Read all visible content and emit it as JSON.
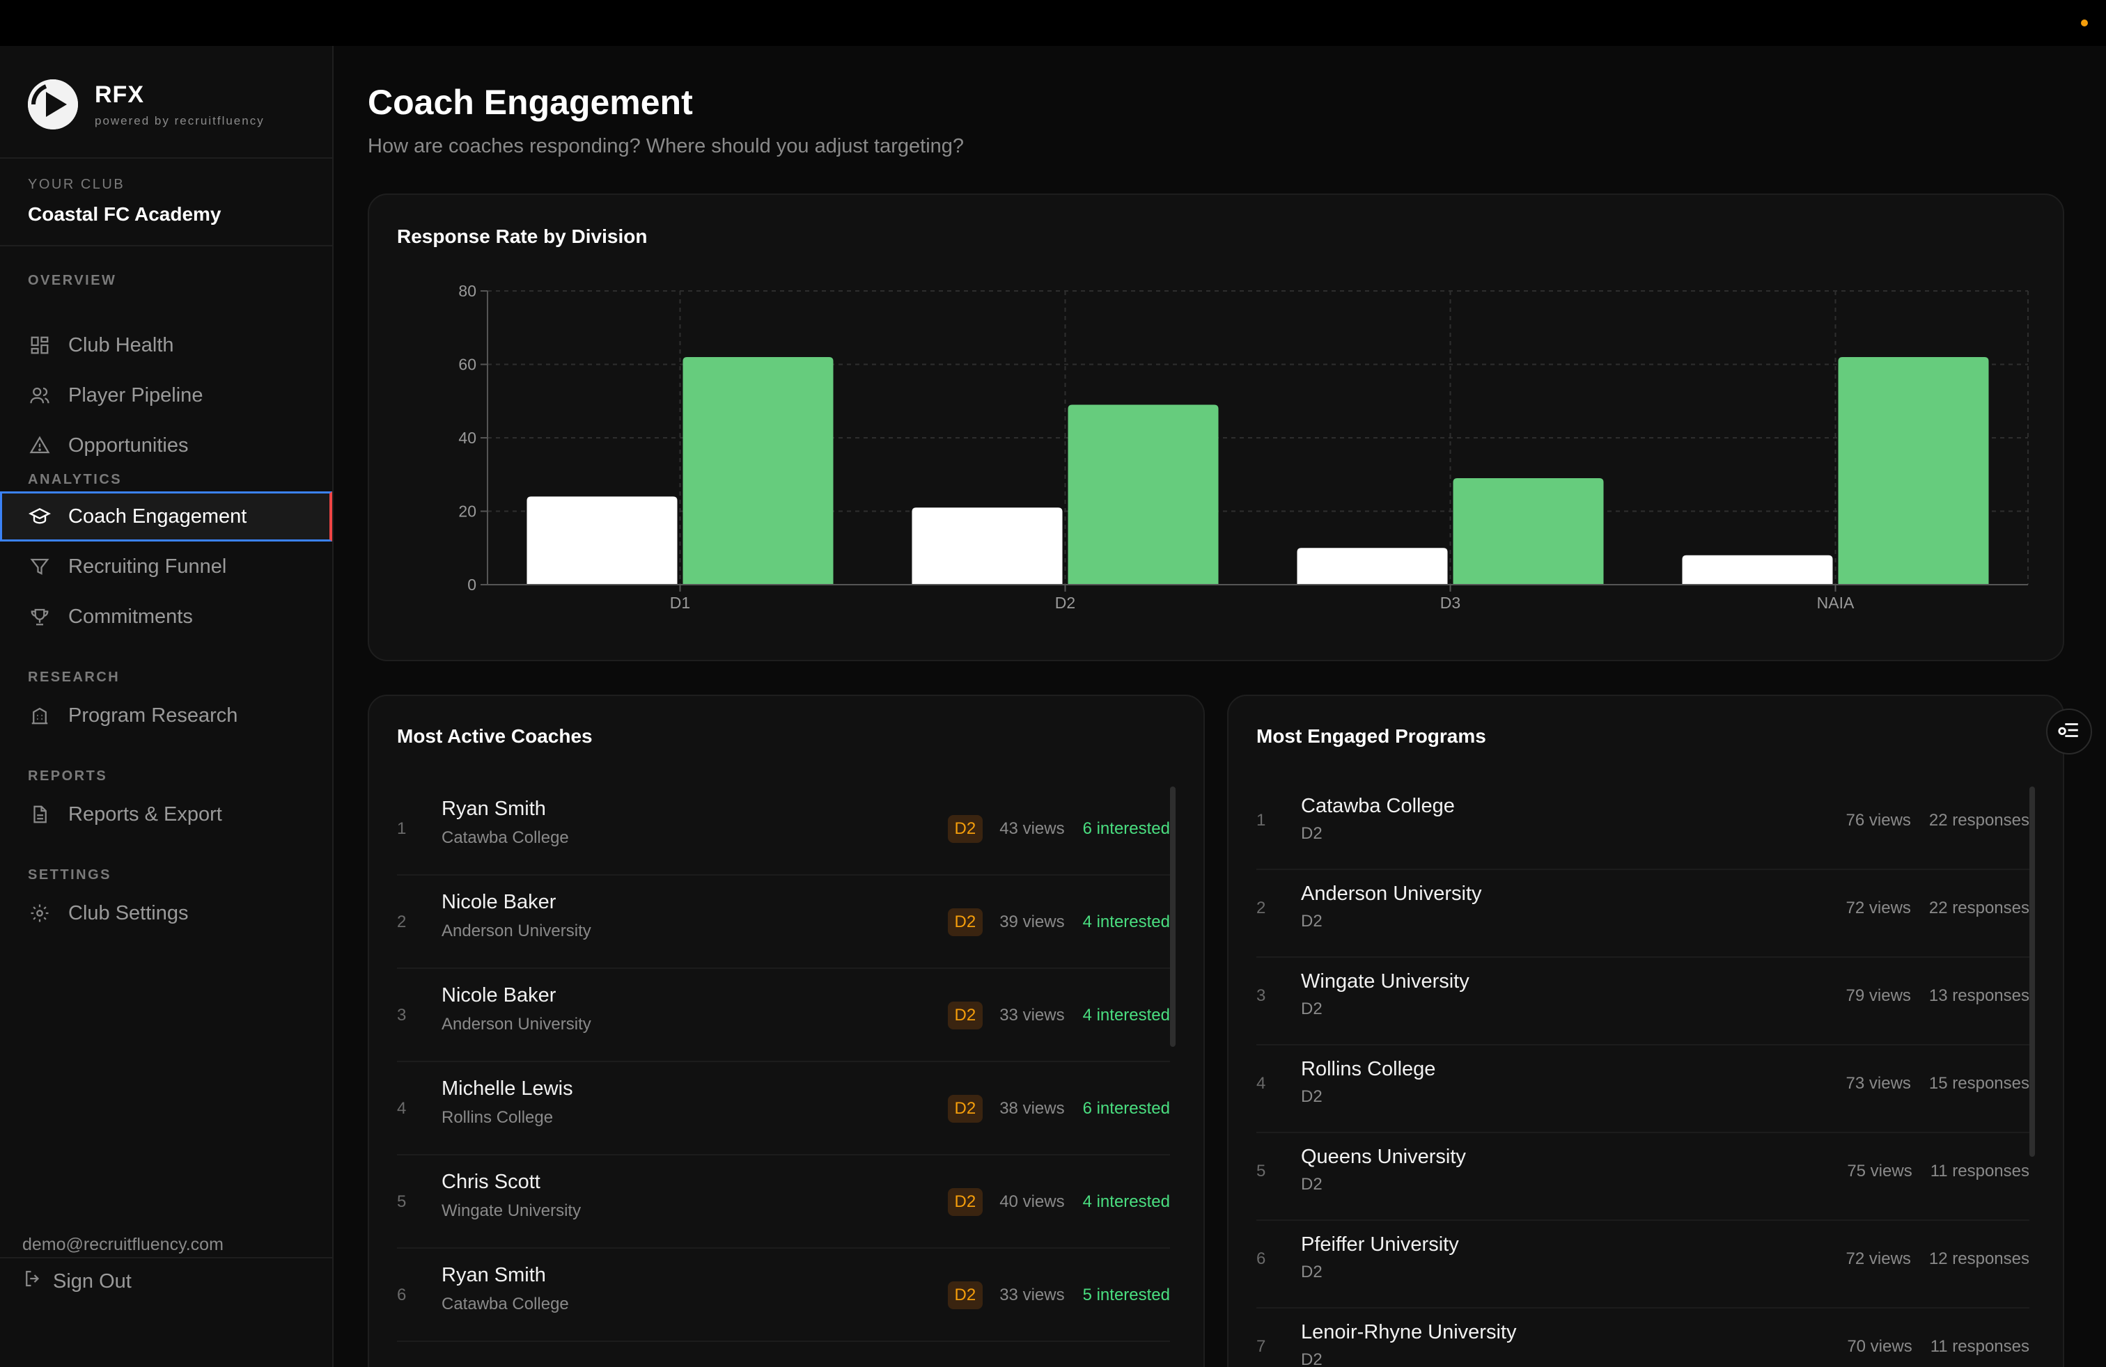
{
  "brand": {
    "name": "RFX",
    "tagline": "powered by recruitfluency"
  },
  "club": {
    "label": "YOUR CLUB",
    "name": "Coastal FC Academy"
  },
  "nav": {
    "sections": [
      {
        "label": "OVERVIEW"
      },
      {
        "label": "ANALYTICS"
      },
      {
        "label": "RESEARCH"
      },
      {
        "label": "REPORTS"
      },
      {
        "label": "SETTINGS"
      }
    ],
    "items": [
      {
        "label": "Club Health",
        "icon": "grid-icon"
      },
      {
        "label": "Player Pipeline",
        "icon": "users-icon"
      },
      {
        "label": "Opportunities",
        "icon": "alert-triangle-icon"
      },
      {
        "label": "Coach Engagement",
        "icon": "graduation-cap-icon",
        "active": true
      },
      {
        "label": "Recruiting Funnel",
        "icon": "filter-icon"
      },
      {
        "label": "Commitments",
        "icon": "trophy-icon"
      },
      {
        "label": "Program Research",
        "icon": "building-icon"
      },
      {
        "label": "Reports & Export",
        "icon": "document-icon"
      },
      {
        "label": "Club Settings",
        "icon": "gear-icon"
      }
    ]
  },
  "user": {
    "email": "demo@recruitfluency.com",
    "signout_label": "Sign Out"
  },
  "page": {
    "title": "Coach Engagement",
    "subtitle": "How are coaches responding? Where should you adjust targeting?"
  },
  "chart_data": {
    "type": "bar",
    "title": "Response Rate by Division",
    "categories": [
      "D1",
      "D2",
      "D3",
      "NAIA"
    ],
    "series": [
      {
        "values": [
          24,
          21,
          10,
          8
        ],
        "color": "#ffffff"
      },
      {
        "values": [
          62,
          49,
          29,
          62
        ],
        "color": "#66cc7d"
      }
    ],
    "ylim": [
      0,
      80
    ],
    "yticks": [
      "0",
      "20",
      "40",
      "60",
      "80"
    ],
    "grid": true,
    "xlabel": "",
    "ylabel": ""
  },
  "coaches": {
    "title": "Most Active Coaches",
    "rows": [
      {
        "rank": "1",
        "name": "Ryan Smith",
        "school": "Catawba College",
        "division": "D2",
        "views": "43 views",
        "interested": "6 interested"
      },
      {
        "rank": "2",
        "name": "Nicole Baker",
        "school": "Anderson University",
        "division": "D2",
        "views": "39 views",
        "interested": "4 interested"
      },
      {
        "rank": "3",
        "name": "Nicole Baker",
        "school": "Anderson University",
        "division": "D2",
        "views": "33 views",
        "interested": "4 interested"
      },
      {
        "rank": "4",
        "name": "Michelle Lewis",
        "school": "Rollins College",
        "division": "D2",
        "views": "38 views",
        "interested": "6 interested"
      },
      {
        "rank": "5",
        "name": "Chris Scott",
        "school": "Wingate University",
        "division": "D2",
        "views": "40 views",
        "interested": "4 interested"
      },
      {
        "rank": "6",
        "name": "Ryan Smith",
        "school": "Catawba College",
        "division": "D2",
        "views": "33 views",
        "interested": "5 interested"
      }
    ]
  },
  "programs": {
    "title": "Most Engaged Programs",
    "rows": [
      {
        "rank": "1",
        "name": "Catawba College",
        "division": "D2",
        "views": "76 views",
        "responses": "22 responses"
      },
      {
        "rank": "2",
        "name": "Anderson University",
        "division": "D2",
        "views": "72 views",
        "responses": "22 responses"
      },
      {
        "rank": "3",
        "name": "Wingate University",
        "division": "D2",
        "views": "79 views",
        "responses": "13 responses"
      },
      {
        "rank": "4",
        "name": "Rollins College",
        "division": "D2",
        "views": "73 views",
        "responses": "15 responses"
      },
      {
        "rank": "5",
        "name": "Queens University",
        "division": "D2",
        "views": "75 views",
        "responses": "11 responses"
      },
      {
        "rank": "6",
        "name": "Pfeiffer University",
        "division": "D2",
        "views": "72 views",
        "responses": "12 responses"
      },
      {
        "rank": "7",
        "name": "Lenoir-Rhyne University",
        "division": "D2",
        "views": "70 views",
        "responses": "11 responses"
      }
    ]
  }
}
